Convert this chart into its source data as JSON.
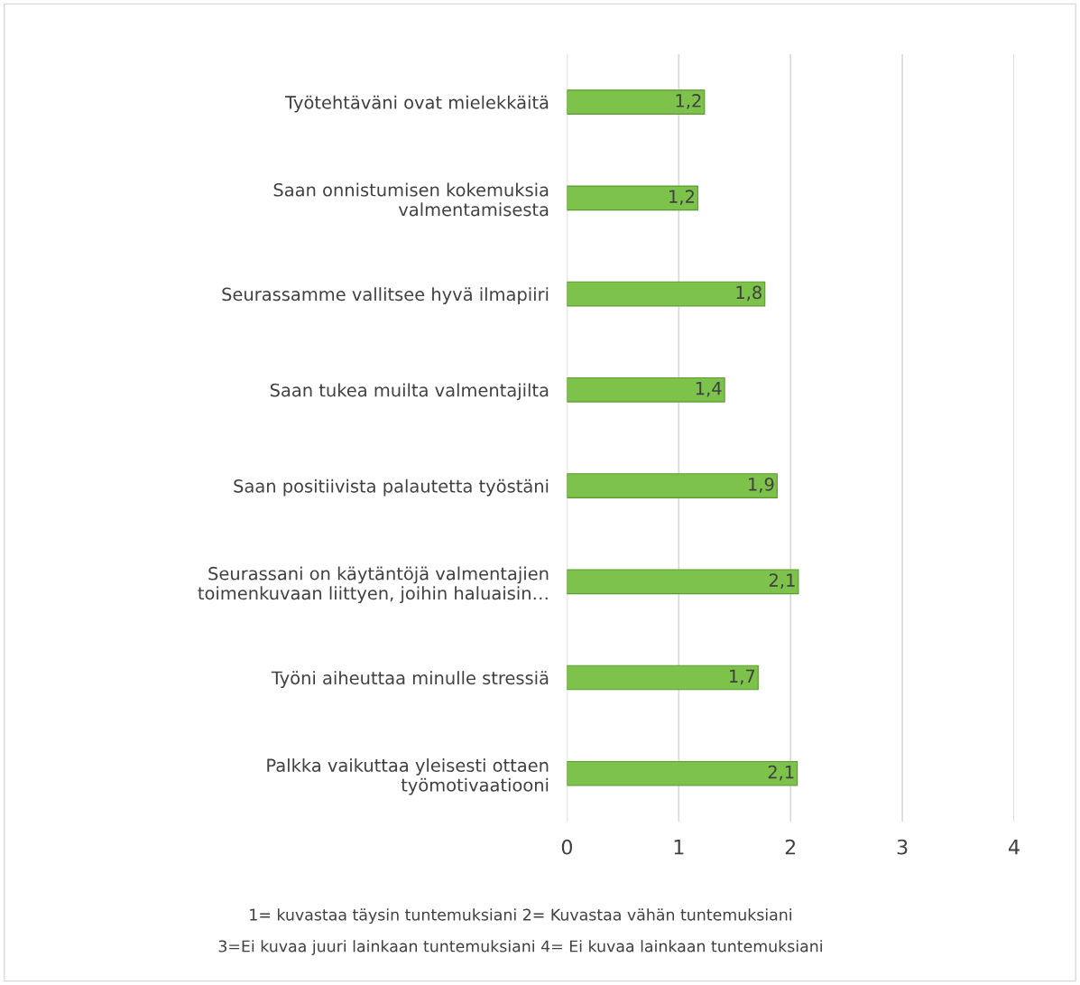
{
  "chart_data": {
    "type": "bar",
    "orientation": "horizontal",
    "categories": [
      "Työtehtäväni ovat mielekkäitä",
      "Saan onnistumisen kokemuksia\nvalmentamisesta",
      "Seurassamme vallitsee hyvä ilmapiiri",
      "Saan tukea muilta valmentajilta",
      "Saan positiivista palautetta työstäni",
      "Seurassani on käytäntöjä valmentajien\ntoimenkuvaan liittyen, joihin haluaisin…",
      "Työni aiheuttaa minulle stressiä",
      "Palkka vaikuttaa yleisesti ottaen\ntyömotivaatiooni"
    ],
    "values": [
      1.23,
      1.17,
      1.77,
      1.41,
      1.88,
      2.07,
      1.71,
      2.06
    ],
    "value_labels": [
      "1,2",
      "1,2",
      "1,8",
      "1,4",
      "1,9",
      "2,1",
      "1,7",
      "2,1"
    ],
    "color": "#7dc24b",
    "xlim": [
      0,
      4
    ],
    "xticks": [
      0,
      1,
      2,
      3,
      4
    ],
    "grid": "x",
    "legend": false,
    "annotations": [
      "1= kuvastaa täysin tuntemuksiani 2= Kuvastaa vähän tuntemuksiani",
      "3=Ei kuvaa juuri lainkaan tuntemuksiani 4= Ei kuvaa lainkaan tuntemuksiani"
    ]
  }
}
